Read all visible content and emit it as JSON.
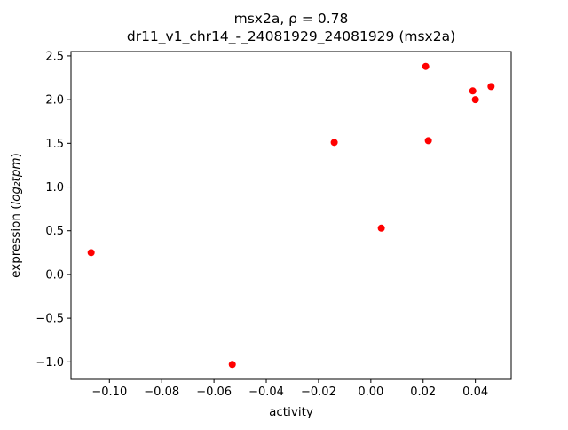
{
  "figure": {
    "title_line1": "msx2a, ρ = 0.78",
    "title_line2": "dr11_v1_chr14_-_24081929_24081929 (msx2a)",
    "xlabel": "activity",
    "ylabel_prefix": "expression (",
    "ylabel_math": "log₂tpm",
    "ylabel_suffix": ")"
  },
  "chart_data": {
    "type": "scatter",
    "title": "msx2a, ρ = 0.78",
    "subtitle": "dr11_v1_chr14_-_24081929_24081929 (msx2a)",
    "xlabel": "activity",
    "ylabel": "expression (log₂tpm)",
    "marker_color": "#ff0000",
    "frame_color": "#000000",
    "grid": false,
    "legend": null,
    "xlim": [
      -0.1147,
      0.0537
    ],
    "ylim": [
      -1.2,
      2.55
    ],
    "xticks": [
      -0.1,
      -0.08,
      -0.06,
      -0.04,
      -0.02,
      0.0,
      0.02,
      0.04
    ],
    "xtick_labels": [
      "−0.10",
      "−0.08",
      "−0.06",
      "−0.04",
      "−0.02",
      "0.00",
      "0.02",
      "0.04"
    ],
    "yticks": [
      -1.0,
      -0.5,
      0.0,
      0.5,
      1.0,
      1.5,
      2.0,
      2.5
    ],
    "ytick_labels": [
      "−1.0",
      "−0.5",
      "0.0",
      "0.5",
      "1.0",
      "1.5",
      "2.0",
      "2.5"
    ],
    "points": [
      {
        "x": -0.107,
        "y": 0.25
      },
      {
        "x": -0.053,
        "y": -1.03
      },
      {
        "x": -0.014,
        "y": 1.51
      },
      {
        "x": 0.004,
        "y": 0.53
      },
      {
        "x": 0.021,
        "y": 2.38
      },
      {
        "x": 0.022,
        "y": 1.53
      },
      {
        "x": 0.039,
        "y": 2.1
      },
      {
        "x": 0.04,
        "y": 2.0
      },
      {
        "x": 0.046,
        "y": 2.15
      }
    ]
  }
}
